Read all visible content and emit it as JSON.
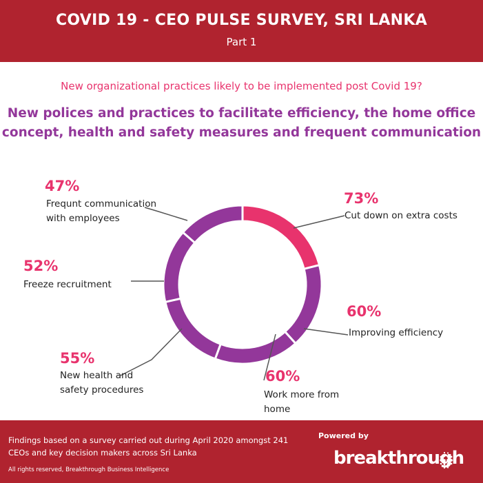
{
  "header": {
    "title": "COVID 19 - CEO PULSE SURVEY, SRI LANKA",
    "subtitle": "Part 1"
  },
  "question": "New organizational practices likely to be implemented post Covid 19?",
  "headline": {
    "line1": "New polices and practices to facilitate efficiency, the home office",
    "line2": "concept, health and safety measures and frequent communication"
  },
  "colors": {
    "header_bg": "#b0232f",
    "highlight": "#e8336d",
    "series": "#93379a",
    "separator": "#ffffff"
  },
  "chart_data": {
    "type": "pie",
    "style": "donut",
    "unit": "%",
    "highlighted_category": "Cut down on extra costs",
    "items": [
      {
        "value": 73,
        "label_lines": [
          "Cut down on extra costs"
        ]
      },
      {
        "value": 60,
        "label_lines": [
          "Improving efficiency"
        ]
      },
      {
        "value": 60,
        "label_lines": [
          "Work more from",
          "home"
        ]
      },
      {
        "value": 55,
        "label_lines": [
          "New health and",
          "safety procedures"
        ]
      },
      {
        "value": 52,
        "label_lines": [
          "Freeze recruitment"
        ]
      },
      {
        "value": 47,
        "label_lines": [
          "Frequnt communication",
          "with employees"
        ]
      }
    ]
  },
  "footer": {
    "note_line1": "Findings based on a survey carried out during April 2020 amongst 241",
    "note_line2": "CEOs and key decision makers across Sri Lanka",
    "rights": "All rights reserved, Breakthrough Business Intelligence",
    "powered_by": "Powered by",
    "brand": "breakthrough",
    "brand_icon": "dotted-arrow-logo"
  }
}
